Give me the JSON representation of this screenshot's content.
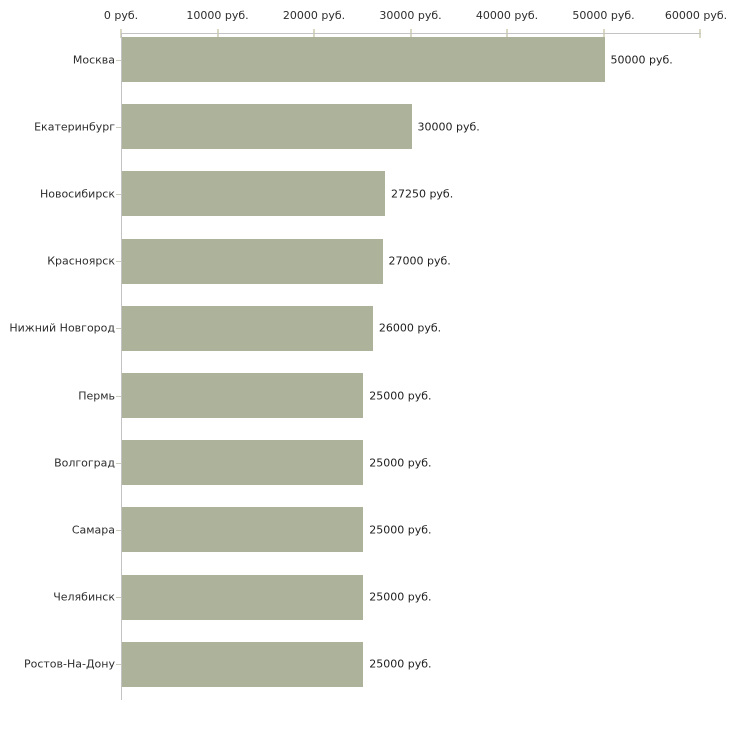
{
  "chart_data": {
    "type": "bar",
    "orientation": "horizontal",
    "title": "",
    "xlabel": "",
    "ylabel": "",
    "unit": "руб.",
    "categories": [
      "Москва",
      "Екатеринбург",
      "Новосибирск",
      "Красноярск",
      "Нижний Новгород",
      "Пермь",
      "Волгоград",
      "Самара",
      "Челябинск",
      "Ростов-На-Дону"
    ],
    "values": [
      50000,
      30000,
      27250,
      27000,
      26000,
      25000,
      25000,
      25000,
      25000,
      25000
    ],
    "value_labels": [
      "50000 руб.",
      "30000 руб.",
      "27250 руб.",
      "27000 руб.",
      "26000 руб.",
      "25000 руб.",
      "25000 руб.",
      "25000 руб.",
      "25000 руб.",
      "25000 руб."
    ],
    "x_axis": {
      "min": 0,
      "max": 60000,
      "ticks": [
        0,
        10000,
        20000,
        30000,
        40000,
        50000,
        60000
      ],
      "tick_labels": [
        "0 руб.",
        "10000 руб.",
        "20000 руб.",
        "30000 руб.",
        "40000 руб.",
        "50000 руб.",
        "60000 руб."
      ]
    },
    "legend": null,
    "grid": false,
    "colors": {
      "bar": "#adb29a",
      "axis": "#c3c3c3",
      "x_tick": "#d9d9c3",
      "category_tick": "#c9c9bc",
      "text": "#2e2e2e"
    }
  }
}
